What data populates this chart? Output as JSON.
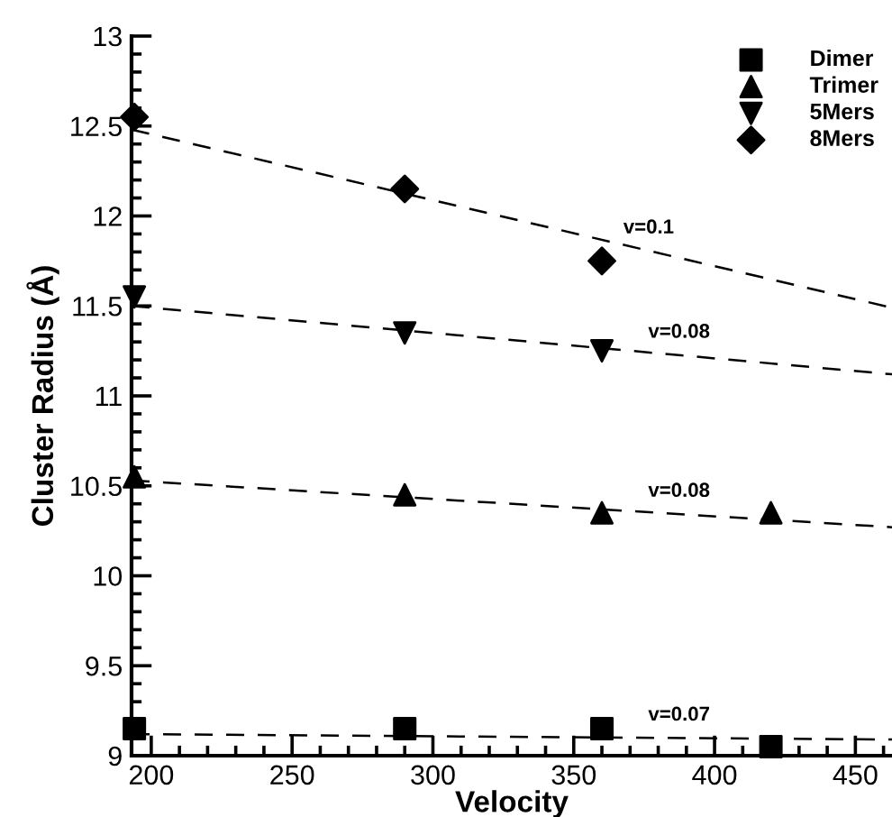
{
  "chart_data": {
    "type": "scatter",
    "xlabel": "Velocity",
    "ylabel": "Cluster Radius (Å)",
    "xlim": [
      193,
      463
    ],
    "xticks": [
      200,
      250,
      300,
      350,
      400,
      450
    ],
    "ylim": [
      9,
      13
    ],
    "yticks": [
      9,
      9.5,
      10,
      10.5,
      11,
      11.5,
      12,
      12.5,
      13
    ],
    "legend": "top right",
    "grid": false,
    "series": [
      {
        "name": "Dimer",
        "color": "#000000",
        "marker": "square",
        "x": [
          194,
          290,
          360,
          420
        ],
        "values": [
          9.15,
          9.15,
          9.15,
          9.05
        ]
      },
      {
        "name": "Trimer",
        "color": "#000000",
        "marker": "triangle",
        "x": [
          194,
          290,
          360,
          420
        ],
        "values": [
          10.55,
          10.45,
          10.35,
          10.35
        ]
      },
      {
        "name": "5Mers",
        "color": "#000000",
        "marker": "triangle_down",
        "x": [
          194,
          290,
          360
        ],
        "values": [
          11.55,
          11.35,
          11.25
        ]
      },
      {
        "name": "8Mers",
        "color": "#000000",
        "marker": "diamond",
        "x": [
          194,
          290,
          360
        ],
        "values": [
          12.55,
          12.15,
          11.75
        ]
      },
      {
        "type": "line",
        "line_style": "dashed",
        "color": "#000000",
        "x": [
          193,
          463
        ],
        "values": [
          12.48,
          11.49
        ]
      },
      {
        "type": "line",
        "line_style": "dashed",
        "color": "#000000",
        "x": [
          193,
          463
        ],
        "values": [
          11.5,
          11.12
        ]
      },
      {
        "type": "line",
        "line_style": "dashed",
        "color": "#000000",
        "x": [
          193,
          463
        ],
        "values": [
          10.53,
          10.27
        ]
      },
      {
        "type": "line",
        "line_style": "dashed",
        "color": "#000000",
        "x": [
          193,
          463
        ],
        "values": [
          9.12,
          9.09
        ]
      }
    ],
    "annotations": [
      "v=0.1",
      "v=0.08",
      "v=0.08",
      "v=0.07"
    ]
  }
}
